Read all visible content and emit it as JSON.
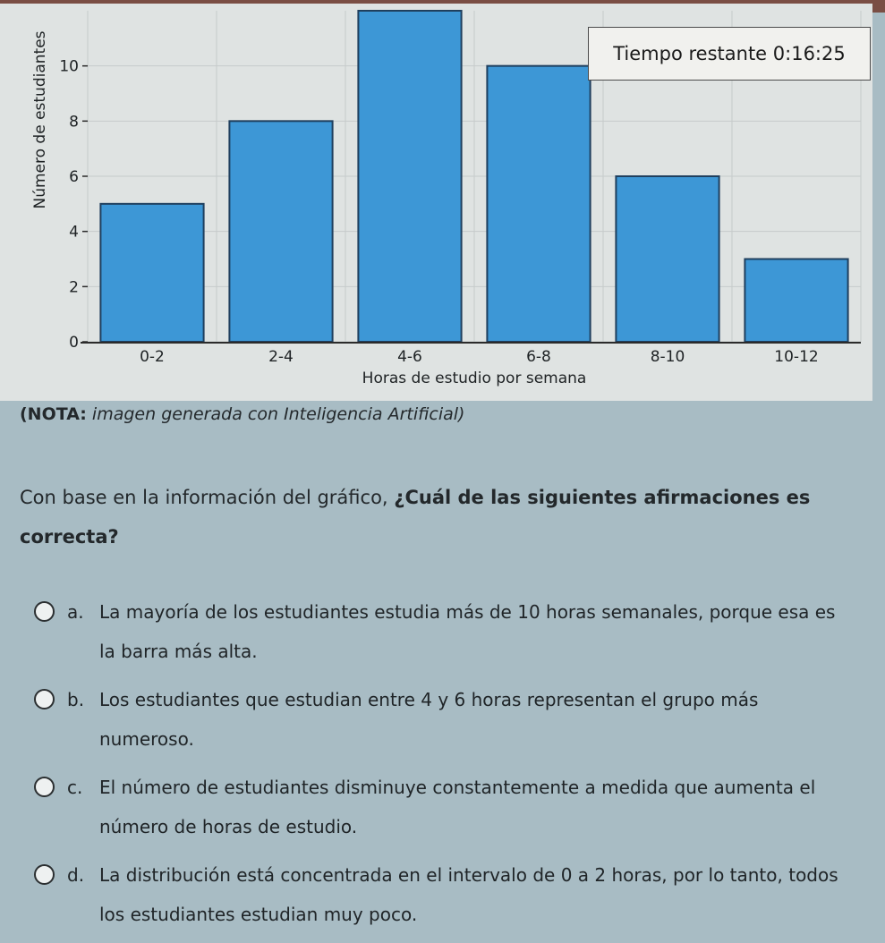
{
  "chart_data": {
    "type": "bar",
    "categories": [
      "0-2",
      "2-4",
      "4-6",
      "6-8",
      "8-10",
      "10-12"
    ],
    "values": [
      5,
      8,
      12,
      10,
      6,
      3
    ],
    "xlabel": "Horas de estudio por semana",
    "ylabel": "Número de estudiantes",
    "yticks": [
      0,
      2,
      4,
      6,
      8,
      10
    ],
    "ylim": [
      0,
      12
    ],
    "grid": true,
    "bar_color": "#3d97d6"
  },
  "timer": {
    "text": "Tiempo restante 0:16:25"
  },
  "note": {
    "bold": "(NOTA:",
    "rest": " imagen generada con Inteligencia Artificial)"
  },
  "question": {
    "lead": "Con base en la información del gráfico, ",
    "bold": "¿Cuál de las siguientes afirmaciones es correcta?"
  },
  "options": [
    {
      "letter": "a.",
      "text": "La mayoría de los estudiantes estudia más de 10 horas semanales, porque esa es la barra más alta."
    },
    {
      "letter": "b.",
      "text": "Los estudiantes que estudian entre 4 y 6 horas representan el grupo más numeroso."
    },
    {
      "letter": "c.",
      "text": "El número de estudiantes disminuye constantemente a medida que aumenta el número de horas de estudio."
    },
    {
      "letter": "d.",
      "text": "La distribución está concentrada en el intervalo de 0 a 2 horas, por lo tanto, todos los estudiantes estudian muy poco."
    }
  ]
}
